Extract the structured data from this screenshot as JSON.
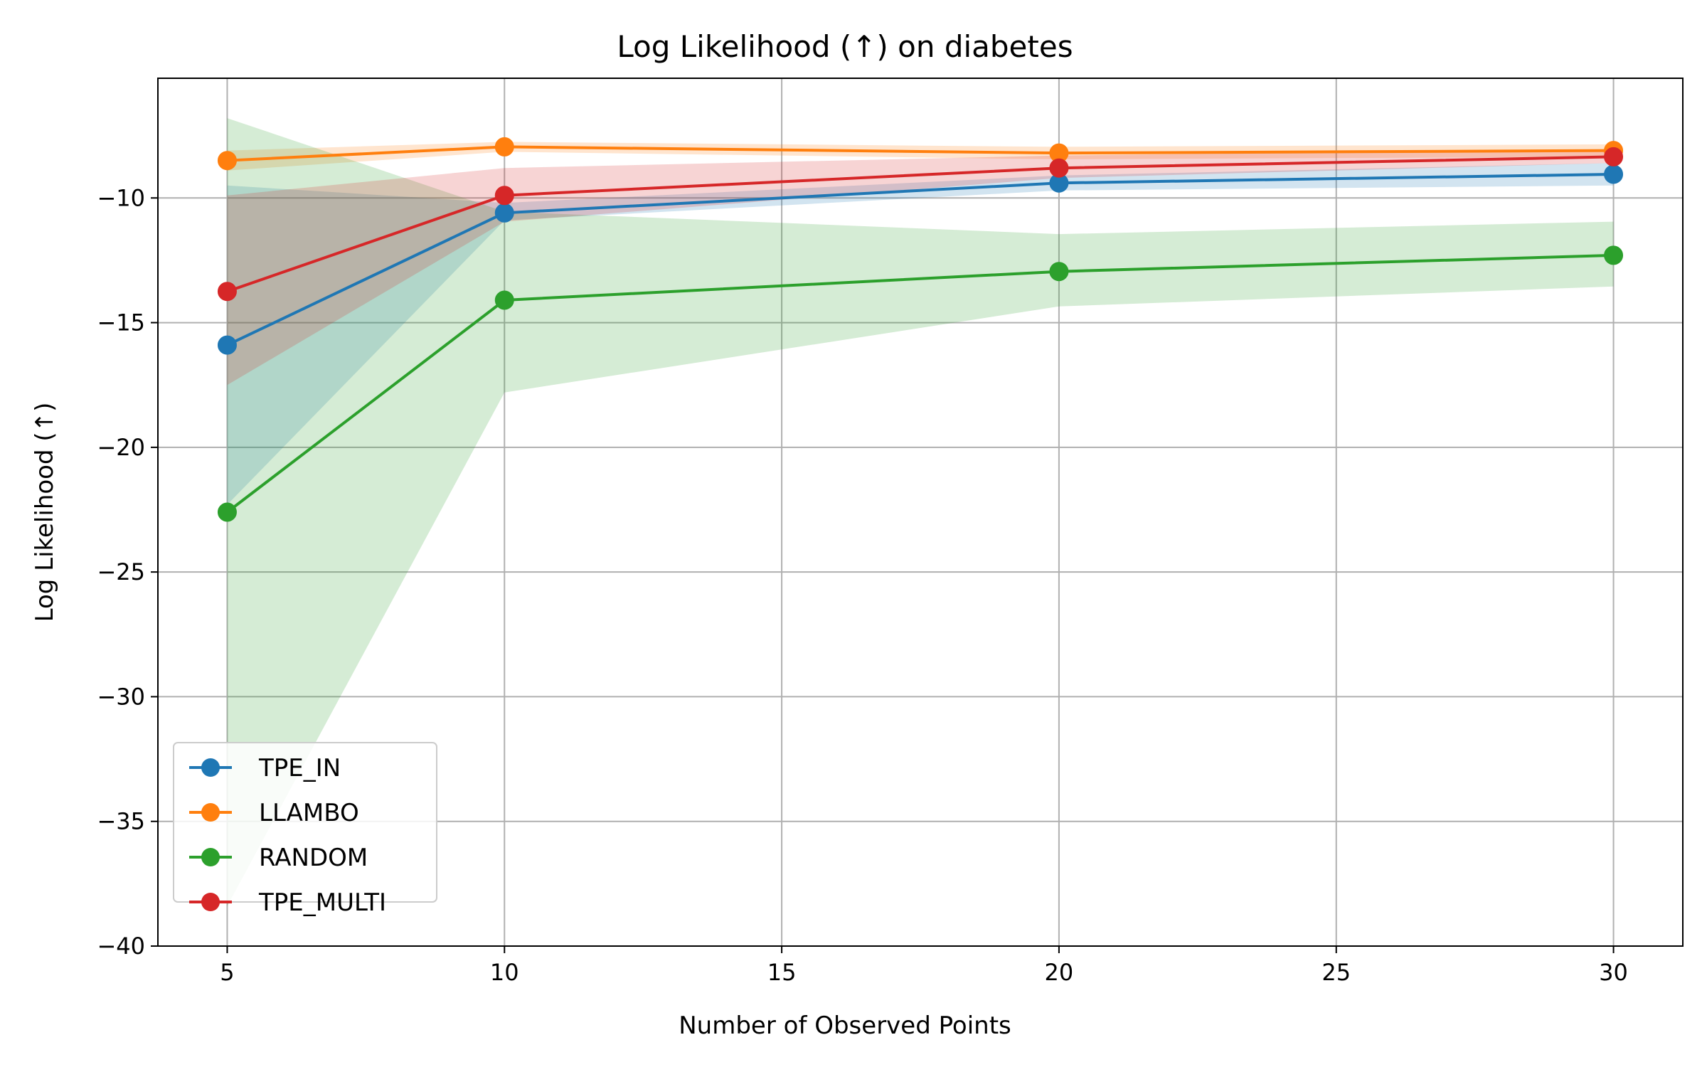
{
  "chart_data": {
    "type": "line",
    "title": "Log Likelihood (↑) on diabetes",
    "xlabel": "Number of Observed Points",
    "ylabel": "Log Likelihood (↑)",
    "x": [
      5,
      10,
      20,
      30
    ],
    "xlim": [
      3.75,
      31.25
    ],
    "ylim": [
      -40,
      -5.2
    ],
    "xticks": [
      5,
      10,
      15,
      20,
      25,
      30
    ],
    "yticks": [
      -40,
      -35,
      -30,
      -25,
      -20,
      -15,
      -10
    ],
    "xtick_labels": [
      "5",
      "10",
      "15",
      "20",
      "25",
      "30"
    ],
    "ytick_labels": [
      "−40",
      "−35",
      "−30",
      "−25",
      "−20",
      "−15",
      "−10"
    ],
    "grid": true,
    "legend_position": "lower-left",
    "series": [
      {
        "name": "TPE_IN",
        "color": "#1f77b4",
        "values": [
          -15.9,
          -10.6,
          -9.4,
          -9.05
        ],
        "lower": [
          -22.3,
          -10.9,
          -9.7,
          -9.5
        ],
        "upper": [
          -9.5,
          -10.2,
          -9.1,
          -8.6
        ]
      },
      {
        "name": "LLAMBO",
        "color": "#ff7f0e",
        "values": [
          -8.5,
          -7.95,
          -8.2,
          -8.1
        ],
        "lower": [
          -8.9,
          -8.15,
          -8.45,
          -8.35
        ],
        "upper": [
          -8.1,
          -7.75,
          -7.95,
          -7.85
        ]
      },
      {
        "name": "RANDOM",
        "color": "#2ca02c",
        "values": [
          -22.6,
          -14.1,
          -12.95,
          -12.3
        ],
        "lower": [
          -38.4,
          -17.8,
          -14.35,
          -13.55
        ],
        "upper": [
          -6.8,
          -10.55,
          -11.45,
          -10.95
        ]
      },
      {
        "name": "TPE_MULTI",
        "color": "#d62728",
        "values": [
          -13.75,
          -9.9,
          -8.8,
          -8.35
        ],
        "lower": [
          -17.5,
          -10.95,
          -9.2,
          -8.6
        ],
        "upper": [
          -9.9,
          -8.8,
          -8.3,
          -8.05
        ]
      }
    ]
  }
}
